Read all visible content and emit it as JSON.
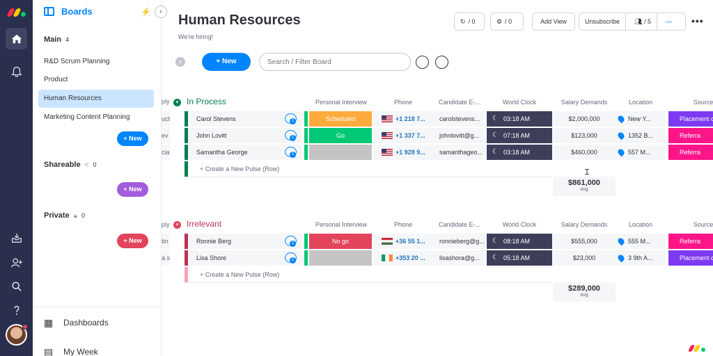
{
  "sidebar": {
    "header": "Boards",
    "sections": {
      "main": {
        "title": "Main",
        "count": "4"
      },
      "shareable": {
        "title": "Shareable",
        "count": "0"
      },
      "private": {
        "title": "Private",
        "count": "0"
      }
    },
    "items": [
      {
        "label": "R&D Scrum Planning"
      },
      {
        "label": "Product"
      },
      {
        "label": "Human Resources"
      },
      {
        "label": "Marketing Content Planning"
      }
    ],
    "new_label": "+ New",
    "bottom": {
      "dashboards": "Dashboards",
      "my_week": "My Week"
    }
  },
  "board": {
    "title": "Human Resources",
    "subtitle": "We're hiring!",
    "activity_count": "/ 0",
    "integrations_count": "/ 0",
    "add_view": "Add View",
    "unsubscribe": "Unsubscribe",
    "members": "/ 5",
    "new_item": "+ New",
    "search_placeholder": "Search / Filter Board"
  },
  "columns": [
    "Personal Interview",
    "Phone",
    "Candidate E-...",
    "World Clock",
    "Salary Demands",
    "Location",
    "Source"
  ],
  "cut_label_1": "ply",
  "cut_label_2": "ply",
  "groups": [
    {
      "title": "In Process",
      "color": "#037f4c",
      "rows": [
        {
          "cut": "uct",
          "name": "Carol Stevens",
          "status": "Scheduled",
          "status_color": "#fdab3d",
          "phone": "+1 218 7...",
          "email": "carolstevens...",
          "clock": "03:18 AM",
          "salary": "$2,000,000",
          "location": "New Y...",
          "source": "Placement c",
          "source_color": "#7e3af2"
        },
        {
          "cut": "ev",
          "name": "John Lovitt",
          "status": "Go",
          "status_color": "#00c875",
          "phone": "+1 337 7...",
          "email": "johnlovitt@g...",
          "clock": "07:18 AM",
          "salary": "$123,000",
          "location": "1352 B...",
          "source": "Referra",
          "source_color": "#ff158a"
        },
        {
          "cut": "cia",
          "name": "Samantha George",
          "status": "",
          "status_color": "#c4c4c4",
          "phone": "+1 928 9...",
          "email": "samanthageo...",
          "clock": "03:18 AM",
          "salary": "$460,000",
          "location": "557 M...",
          "source": "Referra",
          "source_color": "#ff158a"
        }
      ],
      "add_row": "+ Create a New Pulse (Row)",
      "sum_value": "$861,000",
      "sum_label": "avg"
    },
    {
      "title": "Irrelevant",
      "color": "#bb3354",
      "rows": [
        {
          "cut": "tin",
          "name": "Ronnie Berg",
          "status": "No go",
          "status_color": "#e2445c",
          "phone": "+36 55 1...",
          "email": "ronnieberg@g...",
          "clock": "08:18 AM",
          "salary": "$555,000",
          "location": "555 M...",
          "source": "Referra",
          "source_color": "#ff158a"
        },
        {
          "cut": "a s",
          "name": "Lisa Shore",
          "status": "",
          "status_color": "#c4c4c4",
          "phone": "+353 20 ...",
          "email": "lisashora@g...",
          "clock": "05:18 AM",
          "salary": "$23,000",
          "location": "3 9th A...",
          "source": "Placement c",
          "source_color": "#7e3af2"
        }
      ],
      "add_row": "+ Create a New Pulse (Row)",
      "sum_value": "$289,000",
      "sum_label": "avg"
    }
  ]
}
